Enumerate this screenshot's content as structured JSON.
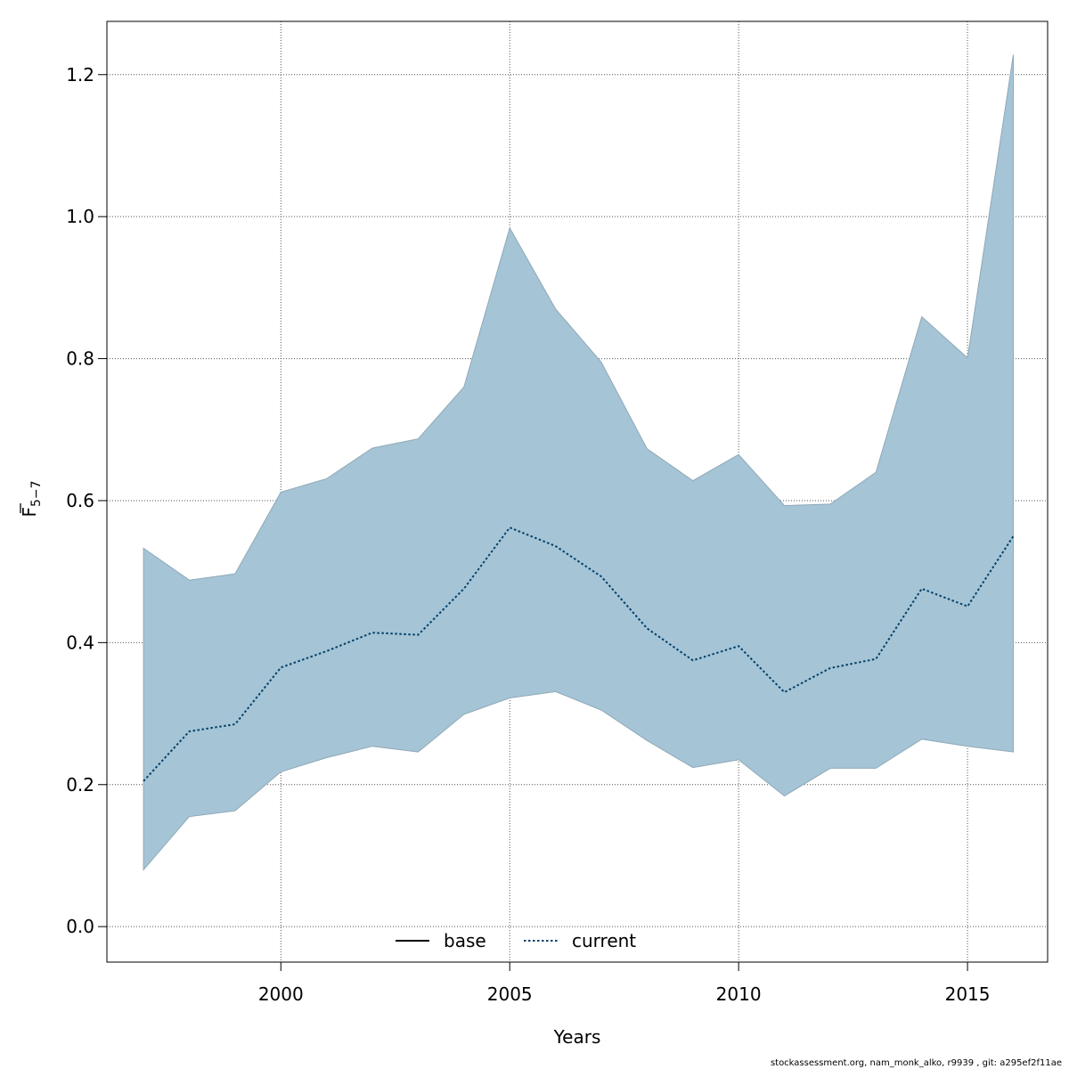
{
  "footer": "stockassessment.org, nam_monk_alko, r9939 , git: a295ef2f11ae",
  "chart_data": {
    "type": "area",
    "xlabel": "Years",
    "ylabel_main": "F",
    "ylabel_sub": "5−7",
    "xlim": [
      1996.2,
      2016.75
    ],
    "ylim": [
      -0.05,
      1.275
    ],
    "xticks": [
      2000,
      2005,
      2010,
      2015
    ],
    "yticks": [
      0.0,
      0.2,
      0.4,
      0.6,
      0.8,
      1.0,
      1.2
    ],
    "ytick_labels": [
      "0.0",
      "0.2",
      "0.4",
      "0.6",
      "0.8",
      "1.0",
      "1.2"
    ],
    "grid": true,
    "legend_position": "bottom-center",
    "legend": [
      {
        "label": "base",
        "style": "solid",
        "color": "#000000"
      },
      {
        "label": "current",
        "style": "dotted",
        "color": "#00406a"
      }
    ],
    "band_color": "#a5c4d5",
    "x": [
      1997,
      1998,
      1999,
      2000,
      2001,
      2002,
      2003,
      2004,
      2005,
      2006,
      2007,
      2008,
      2009,
      2010,
      2011,
      2012,
      2013,
      2014,
      2015,
      2016
    ],
    "series": [
      {
        "name": "current",
        "role": "estimate",
        "values": [
          0.205,
          0.275,
          0.285,
          0.365,
          0.388,
          0.414,
          0.411,
          0.476,
          0.562,
          0.536,
          0.493,
          0.42,
          0.375,
          0.395,
          0.33,
          0.364,
          0.377,
          0.476,
          0.451,
          0.55
        ]
      },
      {
        "role": "upper",
        "values": [
          0.533,
          0.488,
          0.497,
          0.612,
          0.631,
          0.674,
          0.687,
          0.76,
          0.984,
          0.87,
          0.795,
          0.673,
          0.628,
          0.665,
          0.593,
          0.595,
          0.64,
          0.859,
          0.801,
          1.228
        ]
      },
      {
        "role": "lower",
        "values": [
          0.08,
          0.155,
          0.163,
          0.218,
          0.238,
          0.254,
          0.246,
          0.299,
          0.322,
          0.331,
          0.305,
          0.262,
          0.224,
          0.235,
          0.184,
          0.223,
          0.223,
          0.264,
          0.254,
          0.246
        ]
      }
    ]
  }
}
